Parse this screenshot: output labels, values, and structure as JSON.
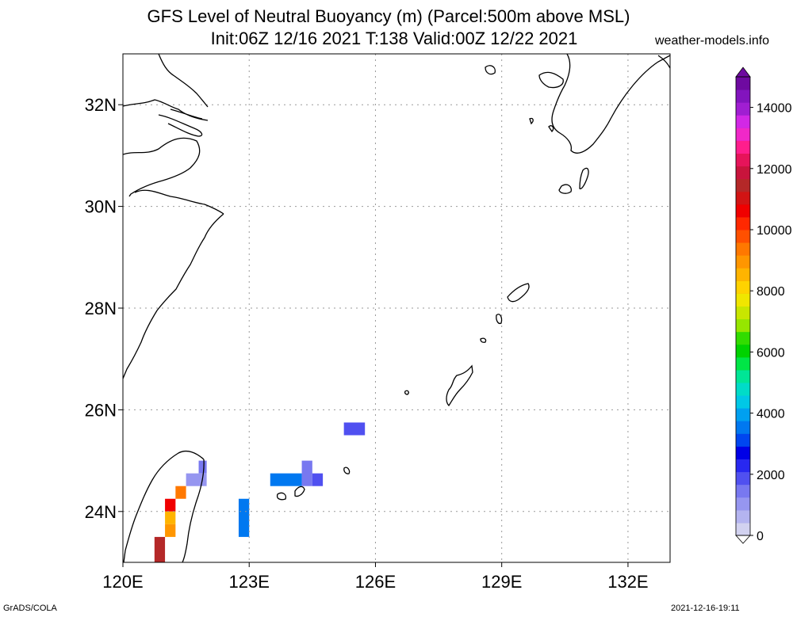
{
  "header": {
    "title_line1": "GFS Level of Neutral Buoyancy (m) (Parcel:500m above MSL)",
    "title_line2": "Init:06Z 12/16 2021 T:138 Valid:00Z 12/22 2021",
    "site": "weather-models.info"
  },
  "footer": {
    "left": "GrADS/COLA",
    "right": "2021-12-16-19:11"
  },
  "map": {
    "lon_labels": [
      "120E",
      "123E",
      "126E",
      "129E",
      "132E"
    ],
    "lat_labels": [
      "32N",
      "30N",
      "28N",
      "26N",
      "24N"
    ],
    "extent": {
      "lon": [
        120,
        133
      ],
      "lat": [
        23,
        33
      ]
    }
  },
  "colorbar": {
    "labels": [
      "14000",
      "12000",
      "10000",
      "8000",
      "6000",
      "4000",
      "2000",
      "0"
    ],
    "colors": [
      "#d2d2f0",
      "#b4b4f0",
      "#9696f0",
      "#7878f0",
      "#5050f0",
      "#2828f0",
      "#0000e6",
      "#0046f0",
      "#0078f0",
      "#00a0f0",
      "#00c8e6",
      "#00dcc8",
      "#00e696",
      "#00e646",
      "#00d200",
      "#32dc00",
      "#96e600",
      "#c8e600",
      "#f0e600",
      "#ffd200",
      "#ffb400",
      "#ff9600",
      "#ff7800",
      "#ff5000",
      "#ff2800",
      "#f00000",
      "#d21414",
      "#b42828",
      "#c8143c",
      "#e6145a",
      "#ff1e8c",
      "#f028c8",
      "#d228e6",
      "#a01ed2",
      "#8214be",
      "#6e0aa0"
    ],
    "min": 0,
    "max": 15000
  },
  "lnb_cells": [
    {
      "lon0": 121.8,
      "lon1": 121.99,
      "lat0": 24.75,
      "lat1": 25.0,
      "value": 1400
    },
    {
      "lon0": 121.5,
      "lon1": 121.99,
      "lat0": 24.5,
      "lat1": 24.75,
      "value": 1200
    },
    {
      "lon0": 121.25,
      "lon1": 121.5,
      "lat0": 24.25,
      "lat1": 24.5,
      "value": 9500
    },
    {
      "lon0": 121.0,
      "lon1": 121.25,
      "lat0": 24.0,
      "lat1": 24.25,
      "value": 10500
    },
    {
      "lon0": 121.0,
      "lon1": 121.25,
      "lat0": 23.75,
      "lat1": 24.0,
      "value": 8500
    },
    {
      "lon0": 121.0,
      "lon1": 121.25,
      "lat0": 23.5,
      "lat1": 23.75,
      "value": 9000
    },
    {
      "lon0": 120.75,
      "lon1": 121.0,
      "lat0": 23.0,
      "lat1": 23.5,
      "value": 11500
    },
    {
      "lon0": 122.75,
      "lon1": 123.0,
      "lat0": 23.5,
      "lat1": 24.25,
      "value": 3600
    },
    {
      "lon0": 123.5,
      "lon1": 124.25,
      "lat0": 24.5,
      "lat1": 24.75,
      "value": 3500
    },
    {
      "lon0": 124.25,
      "lon1": 124.5,
      "lat0": 24.5,
      "lat1": 25.0,
      "value": 1600
    },
    {
      "lon0": 124.5,
      "lon1": 124.75,
      "lat0": 24.5,
      "lat1": 24.75,
      "value": 1900
    },
    {
      "lon0": 125.25,
      "lon1": 125.75,
      "lat0": 25.5,
      "lat1": 25.75,
      "value": 1700
    }
  ]
}
